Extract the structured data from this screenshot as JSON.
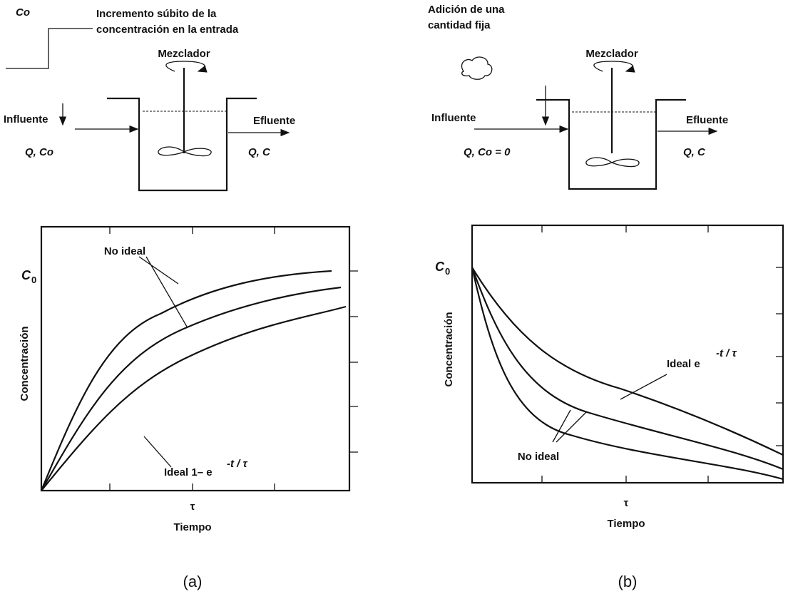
{
  "panels": [
    {
      "step_label": "Co",
      "caption_lines": [
        "Incremento súbito de la",
        "concentración en la entrada"
      ],
      "mixer": "Mezclador",
      "influent": "Influente",
      "effluent": "Efluente",
      "inflow": "Q, Co",
      "outflow": "Q, C",
      "y_top_label": "C",
      "y_top_sub": "0",
      "y_axis": "Concentración",
      "x_tick": "τ",
      "x_axis": "Tiempo",
      "nonideal": "No ideal",
      "ideal_text": "Ideal 1– e",
      "ideal_exp": "-t / τ",
      "panel_label": "(a)"
    },
    {
      "caption_lines": [
        "Adición de una",
        "cantidad fija"
      ],
      "mixer": "Mezclador",
      "influent": "Influente",
      "effluent": "Efluente",
      "inflow": "Q, Co = 0",
      "outflow": "Q, C",
      "y_top_label": "C",
      "y_top_sub": "0",
      "y_axis": "Concentración",
      "x_tick": "τ",
      "x_axis": "Tiempo",
      "nonideal": "No ideal",
      "ideal_text": "Ideal  e",
      "ideal_exp": "-t / τ",
      "panel_label": "(b)"
    }
  ]
}
